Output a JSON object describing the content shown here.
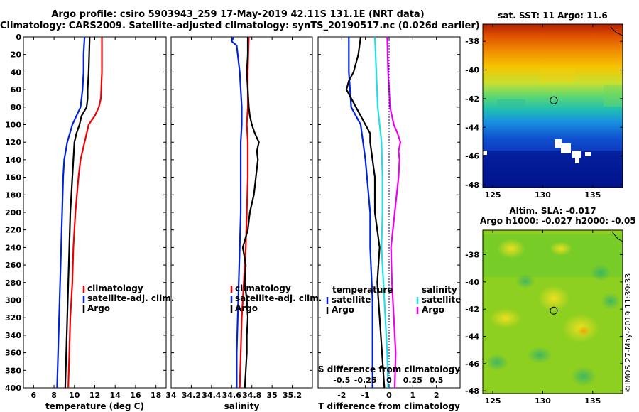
{
  "header": {
    "line1": "Argo profile: csiro 5903943_259 17-May-2019 42.11S 131.1E (NRT data)",
    "line2": "Climatology: CARS2009. Satellite-adjusted climatology: synTS_20190517.nc (0.026d earlier)"
  },
  "colors": {
    "climatology": "#ee0000",
    "satellite": "#0022dd",
    "argo": "#000000",
    "sat_salinity": "#22e0e8",
    "argo_salinity": "#ee00ee"
  },
  "chart_data": [
    {
      "type": "line",
      "id": "temperature",
      "xlabel": "temperature (deg C)",
      "ylabel": "",
      "xlim": [
        5,
        19
      ],
      "ylim": [
        400,
        0
      ],
      "xticks": [
        "6",
        "8",
        "10",
        "12",
        "14",
        "16",
        "18"
      ],
      "xtick_values": [
        6,
        8,
        10,
        12,
        14,
        16,
        18
      ],
      "yticks": [
        "0",
        "20",
        "40",
        "60",
        "80",
        "100",
        "120",
        "140",
        "160",
        "180",
        "200",
        "220",
        "240",
        "260",
        "280",
        "300",
        "320",
        "340",
        "360",
        "380",
        "400"
      ],
      "ytick_values": [
        0,
        20,
        40,
        60,
        80,
        100,
        120,
        140,
        160,
        180,
        200,
        220,
        240,
        260,
        280,
        300,
        320,
        340,
        360,
        380,
        400
      ],
      "legend": [
        "climatology",
        "satellite-adj. clim.",
        "Argo"
      ],
      "series": [
        {
          "name": "climatology",
          "color_key": "climatology",
          "depth": [
            0,
            40,
            70,
            80,
            90,
            100,
            120,
            140,
            160,
            200,
            240,
            280,
            320,
            360,
            400
          ],
          "values": [
            12.7,
            12.7,
            12.6,
            12.4,
            12.0,
            11.4,
            11.0,
            10.6,
            10.4,
            10.1,
            9.9,
            9.8,
            9.6,
            9.5,
            9.4
          ]
        },
        {
          "name": "satellite-adj. clim.",
          "color_key": "satellite",
          "depth": [
            0,
            20,
            40,
            60,
            80,
            100,
            120,
            140,
            160,
            200,
            240,
            280,
            320,
            360,
            400
          ],
          "values": [
            11.0,
            10.9,
            10.9,
            10.8,
            10.6,
            9.8,
            9.3,
            9.0,
            8.9,
            8.8,
            8.7,
            8.6,
            8.5,
            8.4,
            8.3
          ]
        },
        {
          "name": "Argo",
          "color_key": "argo",
          "depth": [
            0,
            40,
            60,
            70,
            80,
            90,
            100,
            110,
            120,
            140,
            160,
            200,
            240,
            280,
            320,
            360,
            400
          ],
          "values": [
            11.5,
            11.4,
            11.3,
            11.3,
            11.2,
            10.7,
            10.5,
            10.2,
            10.0,
            9.9,
            9.8,
            9.6,
            9.5,
            9.4,
            9.3,
            9.2,
            9.1
          ]
        }
      ]
    },
    {
      "type": "line",
      "id": "salinity",
      "xlabel": "salinity",
      "xlim": [
        34.0,
        35.4
      ],
      "ylim": [
        400,
        0
      ],
      "xticks": [
        "34",
        "34.2",
        "34.4",
        "34.6",
        "34.8",
        "35",
        "35.2"
      ],
      "xtick_values": [
        34.0,
        34.2,
        34.4,
        34.6,
        34.8,
        35.0,
        35.2
      ],
      "legend": [
        "climatology",
        "satellite-adj. clim.",
        "Argo"
      ],
      "series": [
        {
          "name": "climatology",
          "color_key": "climatology",
          "depth": [
            0,
            40,
            80,
            100,
            120,
            160,
            200,
            240,
            280,
            320,
            360,
            400
          ],
          "values": [
            34.77,
            34.76,
            34.76,
            34.75,
            34.76,
            34.76,
            34.75,
            34.74,
            34.72,
            34.7,
            34.69,
            34.68
          ],
          "color": "#ee0000"
        },
        {
          "name": "satellite-adj. clim.",
          "color_key": "satellite",
          "depth": [
            0,
            5,
            10,
            40,
            80,
            100,
            120,
            160,
            200,
            240,
            280,
            320,
            360,
            400
          ],
          "values": [
            34.62,
            34.6,
            34.65,
            34.68,
            34.7,
            34.7,
            34.69,
            34.69,
            34.69,
            34.68,
            34.67,
            34.66,
            34.65,
            34.65
          ]
        },
        {
          "name": "Argo",
          "color_key": "argo",
          "depth": [
            0,
            20,
            40,
            60,
            80,
            90,
            100,
            110,
            120,
            130,
            140,
            160,
            180,
            200,
            220,
            240,
            260,
            280,
            300,
            320,
            340,
            360,
            380,
            400
          ],
          "values": [
            34.76,
            34.76,
            34.75,
            34.76,
            34.77,
            34.78,
            34.8,
            34.83,
            34.87,
            34.85,
            34.86,
            34.84,
            34.82,
            34.78,
            34.76,
            34.71,
            34.74,
            34.73,
            34.75,
            34.76,
            34.75,
            34.75,
            34.74,
            34.73
          ]
        }
      ]
    },
    {
      "type": "line",
      "id": "difference",
      "xlabel": "T difference from climatology",
      "xlabel_top": "S difference from climatology",
      "xlim": [
        -3,
        3
      ],
      "ylim": [
        400,
        0
      ],
      "xticks": [
        "-2",
        "-1",
        "0",
        "1",
        "2"
      ],
      "xtick_values": [
        -2,
        -1,
        0,
        1,
        2
      ],
      "s_ticks": [
        "-0.5",
        "-0.25",
        "0",
        "0.25",
        "0.5"
      ],
      "s_tick_values": [
        -0.5,
        -0.25,
        0,
        0.25,
        0.5
      ],
      "legend_titles": [
        "temperature",
        "salinity"
      ],
      "legend_left": [
        "satellite",
        "Argo"
      ],
      "legend_right": [
        "satellite",
        "Argo"
      ],
      "series": [
        {
          "name": "T satellite",
          "color_key": "satellite",
          "depth": [
            0,
            40,
            80,
            100,
            140,
            200,
            240,
            300,
            350,
            400
          ],
          "values": [
            -1.7,
            -1.7,
            -1.6,
            -1.2,
            -1.0,
            -0.8,
            -0.8,
            -0.7,
            -0.7,
            -0.7
          ]
        },
        {
          "name": "T Argo",
          "color_key": "argo",
          "depth": [
            0,
            20,
            40,
            50,
            60,
            70,
            80,
            90,
            100,
            110,
            120,
            140,
            160,
            200,
            240,
            280,
            320,
            360,
            400
          ],
          "values": [
            -1.2,
            -1.3,
            -1.5,
            -1.7,
            -1.8,
            -1.6,
            -1.4,
            -1.2,
            -1.0,
            -0.8,
            -0.8,
            -0.7,
            -0.6,
            -0.6,
            -0.4,
            -0.5,
            -0.4,
            -0.3,
            -0.2
          ]
        },
        {
          "name": "S satellite",
          "color_key": "sat_salinity",
          "depth": [
            0,
            80,
            100,
            120,
            160,
            200,
            240,
            280,
            320,
            360,
            400
          ],
          "values": [
            -0.15,
            -0.12,
            -0.1,
            -0.08,
            -0.07,
            -0.07,
            -0.08,
            -0.06,
            -0.04,
            -0.02,
            -0.01
          ]
        },
        {
          "name": "S Argo",
          "color_key": "argo_salinity",
          "depth": [
            0,
            40,
            80,
            100,
            110,
            120,
            130,
            140,
            160,
            200,
            240,
            280,
            320,
            360,
            400
          ],
          "values": [
            -0.02,
            -0.01,
            0.01,
            0.05,
            0.09,
            0.12,
            0.1,
            0.11,
            0.1,
            0.06,
            0.02,
            0.03,
            0.05,
            0.07,
            0.06
          ]
        },
        {
          "name": "zero",
          "color_key": "zero_line",
          "depth": [
            0,
            400
          ],
          "values": [
            0,
            0
          ]
        }
      ]
    },
    {
      "type": "heatmap",
      "id": "sst-map",
      "title": "sat. SST: 11 Argo: 11.6",
      "xticks": [
        "125",
        "130",
        "135"
      ],
      "xtick_values": [
        125,
        130,
        135
      ],
      "yticks": [
        "-38",
        "-40",
        "-42",
        "-44",
        "-46",
        "-48"
      ],
      "ytick_values": [
        -38,
        -40,
        -42,
        -44,
        -46,
        -48
      ],
      "xlim": [
        124,
        138
      ],
      "ylim": [
        -48.2,
        -36.8
      ],
      "marker": {
        "lon": 131.1,
        "lat": -42.11
      }
    },
    {
      "type": "heatmap",
      "id": "sla-map",
      "title_line1": "Altim. SLA: -0.017",
      "title_line2": "Argo h1000: -0.027 h2000: -0.05",
      "xticks": [
        "125",
        "130",
        "135"
      ],
      "xtick_values": [
        125,
        130,
        135
      ],
      "yticks": [
        "-38",
        "-40",
        "-42",
        "-44",
        "-46",
        "-48"
      ],
      "ytick_values": [
        -38,
        -40,
        -42,
        -44,
        -46,
        -48
      ],
      "xlim": [
        124,
        138
      ],
      "ylim": [
        -48.2,
        -36.2
      ],
      "marker": {
        "lon": 131.1,
        "lat": -42.11
      }
    }
  ],
  "copyright": "©IMOS 27-May-2019 11:39:33"
}
